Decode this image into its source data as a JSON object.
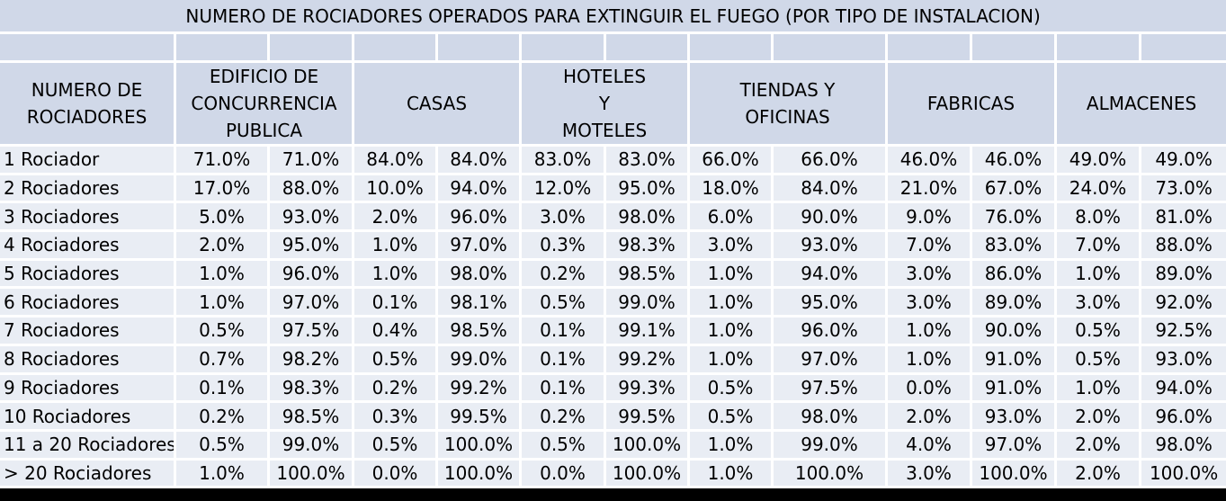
{
  "chart_data": {
    "type": "table",
    "title": "NUMERO DE ROCIADORES OPERADOS PARA EXTINGUIR EL FUEGO (POR TIPO DE INSTALACION)",
    "row_header": "NUMERO DE ROCIADORES",
    "columns": [
      "EDIFICIO DE CONCURRENCIA PUBLICA",
      "CASAS",
      "HOTELES Y MOTELES",
      "TIENDAS Y OFICINAS",
      "FABRICAS",
      "ALMACENES"
    ],
    "rows": [
      {
        "label": "1 Rociador",
        "values": [
          "71.0%",
          "71.0%",
          "84.0%",
          "84.0%",
          "83.0%",
          "83.0%",
          "66.0%",
          "66.0%",
          "46.0%",
          "46.0%",
          "49.0%",
          "49.0%"
        ]
      },
      {
        "label": "2 Rociadores",
        "values": [
          "17.0%",
          "88.0%",
          "10.0%",
          "94.0%",
          "12.0%",
          "95.0%",
          "18.0%",
          "84.0%",
          "21.0%",
          "67.0%",
          "24.0%",
          "73.0%"
        ]
      },
      {
        "label": "3 Rociadores",
        "values": [
          "5.0%",
          "93.0%",
          "2.0%",
          "96.0%",
          "3.0%",
          "98.0%",
          "6.0%",
          "90.0%",
          "9.0%",
          "76.0%",
          "8.0%",
          "81.0%"
        ]
      },
      {
        "label": "4 Rociadores",
        "values": [
          "2.0%",
          "95.0%",
          "1.0%",
          "97.0%",
          "0.3%",
          "98.3%",
          "3.0%",
          "93.0%",
          "7.0%",
          "83.0%",
          "7.0%",
          "88.0%"
        ]
      },
      {
        "label": "5 Rociadores",
        "values": [
          "1.0%",
          "96.0%",
          "1.0%",
          "98.0%",
          "0.2%",
          "98.5%",
          "1.0%",
          "94.0%",
          "3.0%",
          "86.0%",
          "1.0%",
          "89.0%"
        ]
      },
      {
        "label": "6 Rociadores",
        "values": [
          "1.0%",
          "97.0%",
          "0.1%",
          "98.1%",
          "0.5%",
          "99.0%",
          "1.0%",
          "95.0%",
          "3.0%",
          "89.0%",
          "3.0%",
          "92.0%"
        ]
      },
      {
        "label": "7 Rociadores",
        "values": [
          "0.5%",
          "97.5%",
          "0.4%",
          "98.5%",
          "0.1%",
          "99.1%",
          "1.0%",
          "96.0%",
          "1.0%",
          "90.0%",
          "0.5%",
          "92.5%"
        ]
      },
      {
        "label": "8 Rociadores",
        "values": [
          "0.7%",
          "98.2%",
          "0.5%",
          "99.0%",
          "0.1%",
          "99.2%",
          "1.0%",
          "97.0%",
          "1.0%",
          "91.0%",
          "0.5%",
          "93.0%"
        ]
      },
      {
        "label": "9 Rociadores",
        "values": [
          "0.1%",
          "98.3%",
          "0.2%",
          "99.2%",
          "0.1%",
          "99.3%",
          "0.5%",
          "97.5%",
          "0.0%",
          "91.0%",
          "1.0%",
          "94.0%"
        ]
      },
      {
        "label": "10 Rociadores",
        "values": [
          "0.2%",
          "98.5%",
          "0.3%",
          "99.5%",
          "0.2%",
          "99.5%",
          "0.5%",
          "98.0%",
          "2.0%",
          "93.0%",
          "2.0%",
          "96.0%"
        ]
      },
      {
        "label": "11 a 20 Rociadores",
        "values": [
          "0.5%",
          "99.0%",
          "0.5%",
          "100.0%",
          "0.5%",
          "100.0%",
          "1.0%",
          "99.0%",
          "4.0%",
          "97.0%",
          "2.0%",
          "98.0%"
        ]
      },
      {
        "label": "> 20 Rociadores",
        "values": [
          "1.0%",
          "100.0%",
          "0.0%",
          "100.0%",
          "0.0%",
          "100.0%",
          "1.0%",
          "100.0%",
          "3.0%",
          "100.0%",
          "2.0%",
          "100.0%"
        ]
      }
    ]
  },
  "colors": {
    "header_bg": "#d0d8e8",
    "row_bg": "#e9edf4",
    "grid": "#ffffff",
    "background": "#000000"
  }
}
